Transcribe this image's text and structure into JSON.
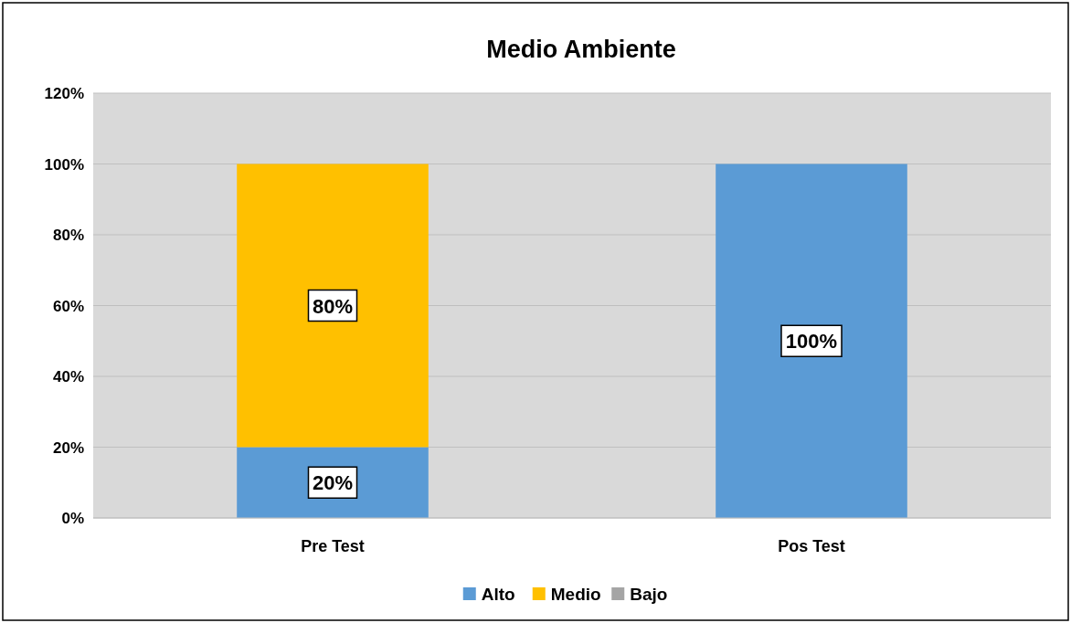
{
  "chart_data": {
    "type": "bar",
    "title": "Medio Ambiente",
    "categories": [
      "Pre Test",
      "Pos Test"
    ],
    "stacked": true,
    "series": [
      {
        "name": "Alto",
        "color": "#5b9bd5",
        "values": [
          20,
          100
        ],
        "value_labels": [
          "20%",
          "100%"
        ]
      },
      {
        "name": "Medio",
        "color": "#ffc000",
        "values": [
          80,
          0
        ],
        "value_labels": [
          "80%",
          null
        ]
      },
      {
        "name": "Bajo",
        "color": "#a5a5a5",
        "values": [
          0,
          0
        ],
        "value_labels": [
          null,
          null
        ]
      }
    ],
    "ylim": [
      0,
      120
    ],
    "yticks": [
      {
        "value": 0,
        "label": "0%"
      },
      {
        "value": 20,
        "label": "20%"
      },
      {
        "value": 40,
        "label": "40%"
      },
      {
        "value": 60,
        "label": "60%"
      },
      {
        "value": 80,
        "label": "80%"
      },
      {
        "value": 100,
        "label": "100%"
      },
      {
        "value": 120,
        "label": "120%"
      }
    ],
    "grid": "y",
    "legend": "bottom"
  }
}
